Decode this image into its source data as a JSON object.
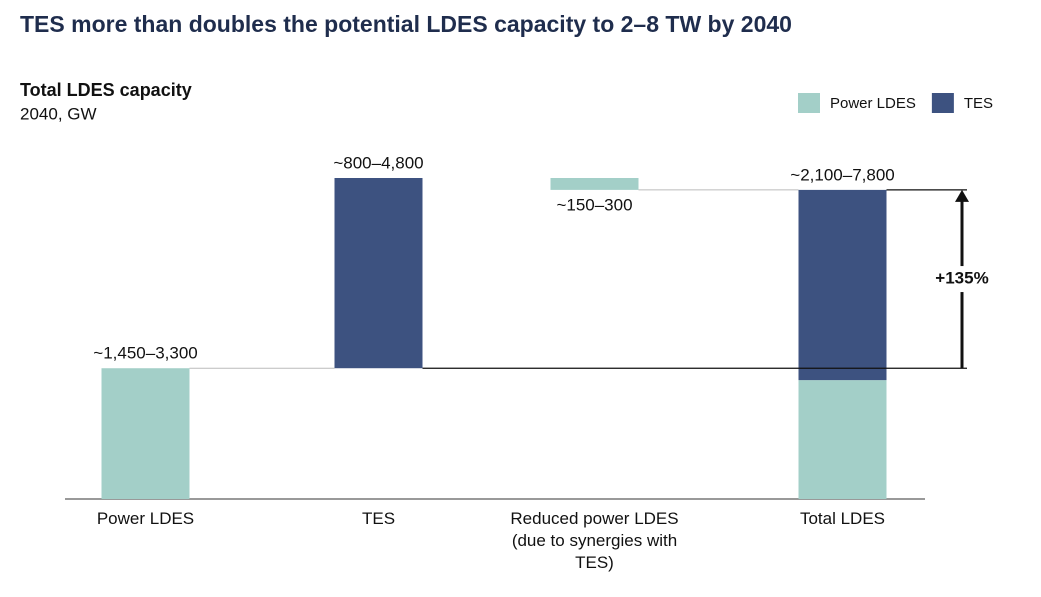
{
  "chart_data": {
    "type": "waterfall",
    "title": "TES more than doubles the potential LDES capacity to 2–8 TW by 2040",
    "subtitle": "Total LDES capacity",
    "unit_label": "2040, GW",
    "categories": [
      "Power LDES",
      "TES",
      "Reduced power LDES (due to synergies with TES)",
      "Total LDES"
    ],
    "series": [
      {
        "name": "Power LDES",
        "color": "#a3cfc8",
        "values": [
          3300,
          null,
          -300,
          3000
        ]
      },
      {
        "name": "TES",
        "color": "#3d5280",
        "values": [
          null,
          4800,
          null,
          4800
        ]
      }
    ],
    "value_labels": [
      "~1,450–3,300",
      "~800–4,800",
      "~150–300",
      "~2,100–7,800"
    ],
    "annotation": "+135%",
    "legend": "top-right"
  }
}
